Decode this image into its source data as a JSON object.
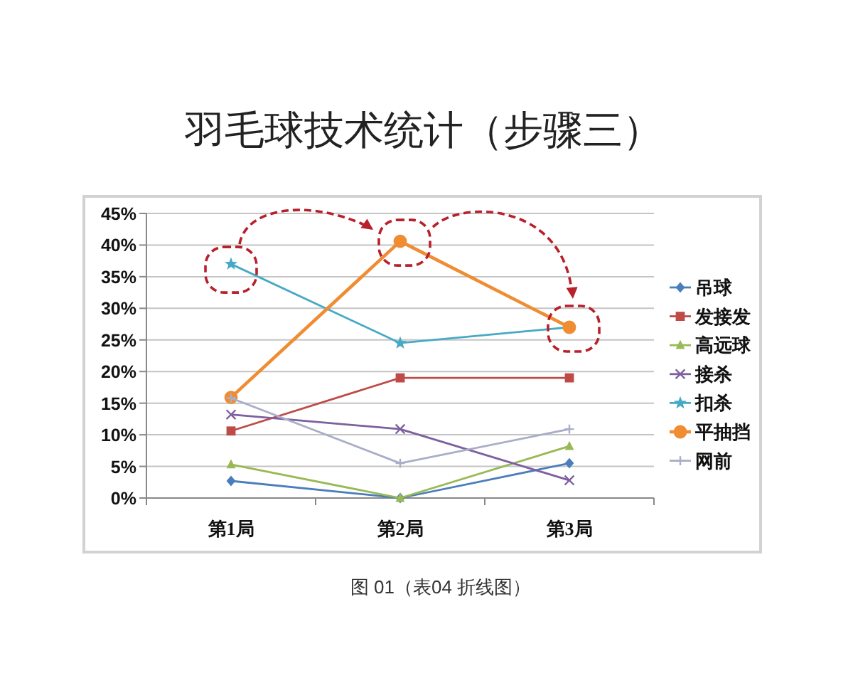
{
  "chart_data": {
    "type": "line",
    "title": "羽毛球技术统计（步骤三）",
    "categories": [
      "第1局",
      "第2局",
      "第3局"
    ],
    "series": [
      {
        "name": "吊球",
        "color": "#4a7ebb",
        "marker": "diamond",
        "values": [
          2.7,
          0,
          5.5
        ]
      },
      {
        "name": "发接发",
        "color": "#be4b48",
        "marker": "square",
        "values": [
          10.6,
          19.0,
          19.0
        ]
      },
      {
        "name": "高远球",
        "color": "#98b954",
        "marker": "triangle",
        "values": [
          5.3,
          0,
          8.2
        ]
      },
      {
        "name": "接杀",
        "color": "#7d60a0",
        "marker": "cross",
        "values": [
          13.2,
          10.9,
          2.8
        ]
      },
      {
        "name": "扣杀",
        "color": "#46aac5",
        "marker": "star",
        "values": [
          37.0,
          24.5,
          27.0
        ]
      },
      {
        "name": "平抽挡",
        "color": "#f08c32",
        "marker": "circle",
        "values": [
          15.9,
          40.6,
          27.0
        ]
      },
      {
        "name": "网前",
        "color": "#a9aec8",
        "marker": "plus",
        "values": [
          15.8,
          5.5,
          10.9
        ]
      }
    ],
    "ylim": [
      0,
      45
    ],
    "yticks": [
      {
        "value": 0,
        "label": "0%"
      },
      {
        "value": 5,
        "label": "5%"
      },
      {
        "value": 10,
        "label": "10%"
      },
      {
        "value": 15,
        "label": "15%"
      },
      {
        "value": 20,
        "label": "20%"
      },
      {
        "value": 25,
        "label": "25%"
      },
      {
        "value": 30,
        "label": "30%"
      },
      {
        "value": 35,
        "label": "35%"
      },
      {
        "value": 40,
        "label": "40%"
      },
      {
        "value": 45,
        "label": "45%"
      }
    ],
    "grid": "y",
    "legend": "right",
    "line_style": "solid",
    "annotations": [
      "图 01（表04 折线图）"
    ]
  }
}
